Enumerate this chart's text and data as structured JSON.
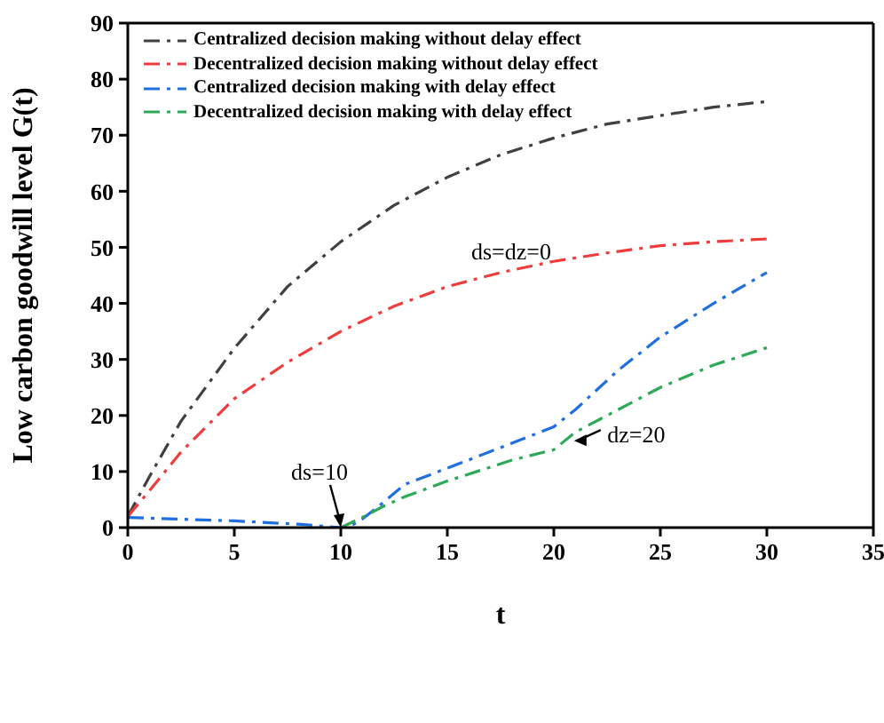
{
  "chart_data": {
    "type": "line",
    "xlabel": "t",
    "ylabel": "Low carbon goodwill level G(t)",
    "xlim": [
      0,
      35
    ],
    "xticks": [
      0,
      5,
      10,
      15,
      20,
      25,
      30,
      35
    ],
    "ylim": [
      0,
      90
    ],
    "yticks": [
      0,
      10,
      20,
      30,
      40,
      50,
      60,
      70,
      80,
      90
    ],
    "legend": "top left",
    "marker": "none",
    "line_style": "dashed",
    "series": [
      {
        "name": "Centralized decision making without delay effect",
        "color": "#404040",
        "x": [
          0,
          1,
          2.5,
          5,
          7.5,
          10,
          12.5,
          15,
          17.5,
          20,
          22.5,
          25,
          27.5,
          30
        ],
        "values": [
          2,
          9,
          19,
          32,
          43,
          51,
          57.5,
          62.5,
          66.5,
          69.5,
          72,
          73.5,
          75,
          76
        ]
      },
      {
        "name": "Decentralized decision making without delay effect",
        "color": "#f03c3c",
        "x": [
          0,
          1,
          2.5,
          5,
          7.5,
          10,
          12.5,
          15,
          17.5,
          20,
          22.5,
          25,
          27.5,
          30
        ],
        "values": [
          2,
          6.5,
          13.5,
          23,
          29.5,
          35,
          39.5,
          43,
          45.5,
          47.5,
          49,
          50.3,
          51,
          51.5
        ]
      },
      {
        "name": "Centralized decision making with delay effect",
        "color": "#1f6fe0",
        "x": [
          0,
          5,
          8,
          10,
          10.5,
          11,
          12,
          13,
          15,
          18,
          20,
          21,
          23,
          25,
          27.5,
          30
        ],
        "values": [
          1.8,
          1.2,
          0.6,
          0,
          0.4,
          1.5,
          4.5,
          7.7,
          10.6,
          15,
          18,
          21,
          28,
          34,
          40,
          45.5
        ]
      },
      {
        "name": "Decentralized decision making with delay effect",
        "color": "#2ea859",
        "x": [
          10,
          11,
          12,
          13,
          15,
          18,
          20,
          21,
          23,
          25,
          27.5,
          30
        ],
        "values": [
          0,
          1.8,
          3.8,
          5.5,
          8.3,
          12,
          13.9,
          17,
          21,
          25,
          29,
          32.1
        ]
      }
    ],
    "annotations": [
      "ds=dz=0",
      {
        "text": "ds=10",
        "x": 10,
        "y": 0
      },
      {
        "text": "dz=20",
        "x": 20.7,
        "y": 15.5
      }
    ]
  }
}
